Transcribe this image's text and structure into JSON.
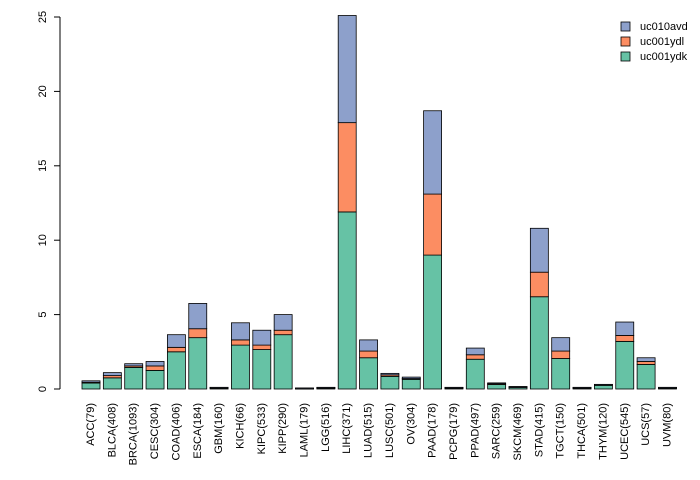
{
  "chart_data": {
    "type": "bar",
    "stacked": true,
    "title": "",
    "xlabel": "",
    "ylabel": "",
    "ylim": [
      0,
      25
    ],
    "yticks": [
      "0",
      "5",
      "10",
      "15",
      "20",
      "25"
    ],
    "categories": [
      "ACC(79)",
      "BLCA(408)",
      "BRCA(1093)",
      "CESC(304)",
      "COAD(406)",
      "ESCA(184)",
      "GBM(160)",
      "KICH(66)",
      "KIPC(533)",
      "KIPP(290)",
      "LAML(179)",
      "LGG(516)",
      "LIHC(371)",
      "LUAD(515)",
      "LUSC(501)",
      "OV(304)",
      "PAAD(178)",
      "PCPG(179)",
      "PPAD(497)",
      "SARC(259)",
      "SKCM(469)",
      "STAD(415)",
      "TGCT(150)",
      "THCA(501)",
      "THYM(120)",
      "UCEC(545)",
      "UCS(57)",
      "UVM(80)"
    ],
    "series": [
      {
        "name": "uc001ydk",
        "color": "#66C2A5",
        "values": [
          0.4,
          0.75,
          1.45,
          1.25,
          2.5,
          3.45,
          0.05,
          2.95,
          2.65,
          3.65,
          0.0,
          0.05,
          11.9,
          2.1,
          0.85,
          0.65,
          9.0,
          0.05,
          2.0,
          0.3,
          0.1,
          6.2,
          2.05,
          0.05,
          0.25,
          3.2,
          1.65,
          0.05
        ]
      },
      {
        "name": "uc001ydl",
        "color": "#FC8D62",
        "values": [
          0.05,
          0.15,
          0.1,
          0.3,
          0.3,
          0.6,
          0.0,
          0.35,
          0.3,
          0.3,
          0.0,
          0.0,
          6.0,
          0.45,
          0.1,
          0.05,
          4.1,
          0.0,
          0.3,
          0.05,
          0.0,
          1.65,
          0.5,
          0.0,
          0.0,
          0.4,
          0.2,
          0.0
        ]
      },
      {
        "name": "uc010avd",
        "color": "#8DA0CB",
        "values": [
          0.1,
          0.2,
          0.15,
          0.3,
          0.85,
          1.7,
          0.0,
          1.15,
          1.0,
          1.05,
          0.0,
          0.0,
          7.2,
          0.75,
          0.1,
          0.1,
          5.6,
          0.0,
          0.45,
          0.05,
          0.05,
          2.95,
          0.9,
          0.0,
          0.05,
          0.9,
          0.25,
          0.0
        ]
      }
    ],
    "legend": {
      "position": "top-right",
      "order": [
        "uc010avd",
        "uc001ydl",
        "uc001ydk"
      ]
    },
    "grid": false
  }
}
